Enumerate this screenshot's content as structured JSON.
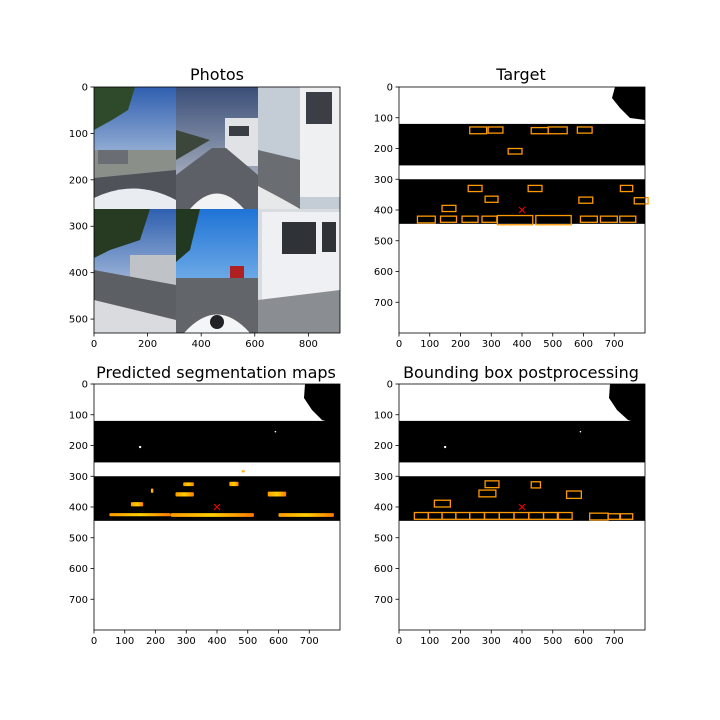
{
  "figure": {
    "panels": [
      {
        "id": "photos",
        "title": "Photos"
      },
      {
        "id": "target",
        "title": "Target"
      },
      {
        "id": "pred",
        "title": "Predicted segmentation maps"
      },
      {
        "id": "bbox",
        "title": "Bounding box postprocessing"
      }
    ]
  },
  "chart_data": [
    {
      "type": "image",
      "title": "Photos",
      "xlim": [
        0,
        918
      ],
      "ylim": [
        0,
        530
      ],
      "xticks": [
        0,
        200,
        400,
        600,
        800
      ],
      "yticks": [
        0,
        100,
        200,
        300,
        400,
        500
      ],
      "grid": false,
      "camera_tiles": 6
    },
    {
      "type": "image",
      "title": "Target",
      "xlim": [
        0,
        800
      ],
      "ylim": [
        0,
        800
      ],
      "xticks": [
        0,
        100,
        200,
        300,
        400,
        500,
        600,
        700
      ],
      "yticks": [
        0,
        100,
        200,
        300,
        400,
        500,
        600,
        700
      ],
      "grid": false,
      "road_bands": [
        [
          120,
          255
        ],
        [
          300,
          445
        ]
      ],
      "ego_marker": [
        400,
        400
      ],
      "boxes": [
        [
          230,
          130,
          55,
          22
        ],
        [
          290,
          130,
          48,
          20
        ],
        [
          430,
          132,
          55,
          20
        ],
        [
          485,
          130,
          62,
          22
        ],
        [
          580,
          130,
          48,
          20
        ],
        [
          355,
          200,
          45,
          18
        ],
        [
          225,
          320,
          45,
          20
        ],
        [
          420,
          320,
          45,
          20
        ],
        [
          720,
          320,
          40,
          20
        ],
        [
          280,
          355,
          42,
          20
        ],
        [
          585,
          358,
          45,
          20
        ],
        [
          765,
          360,
          45,
          20
        ],
        [
          140,
          385,
          45,
          20
        ],
        [
          60,
          420,
          58,
          22
        ],
        [
          135,
          420,
          52,
          20
        ],
        [
          205,
          420,
          52,
          20
        ],
        [
          270,
          420,
          48,
          20
        ],
        [
          320,
          418,
          115,
          30
        ],
        [
          445,
          418,
          115,
          30
        ],
        [
          590,
          420,
          55,
          20
        ],
        [
          655,
          420,
          55,
          20
        ],
        [
          718,
          420,
          52,
          20
        ]
      ]
    },
    {
      "type": "heatmap",
      "title": "Predicted segmentation maps",
      "xlim": [
        0,
        800
      ],
      "ylim": [
        0,
        800
      ],
      "xticks": [
        0,
        100,
        200,
        300,
        400,
        500,
        600,
        700
      ],
      "yticks": [
        0,
        100,
        200,
        300,
        400,
        500,
        600,
        700
      ],
      "grid": false,
      "road_bands": [
        [
          120,
          255
        ],
        [
          300,
          445
        ]
      ],
      "ego_marker": [
        400,
        400
      ],
      "blobs": [
        [
          50,
          420,
          200,
          10
        ],
        [
          250,
          420,
          270,
          12
        ],
        [
          600,
          420,
          180,
          12
        ],
        [
          290,
          320,
          35,
          12
        ],
        [
          265,
          352,
          60,
          14
        ],
        [
          440,
          318,
          30,
          14
        ],
        [
          565,
          350,
          60,
          16
        ],
        [
          120,
          384,
          40,
          14
        ],
        [
          185,
          340,
          8,
          14
        ],
        [
          480,
          280,
          10,
          8
        ]
      ]
    },
    {
      "type": "image",
      "title": "Bounding box postprocessing",
      "xlim": [
        0,
        800
      ],
      "ylim": [
        0,
        800
      ],
      "xticks": [
        0,
        100,
        200,
        300,
        400,
        500,
        600,
        700
      ],
      "yticks": [
        0,
        100,
        200,
        300,
        400,
        500,
        600,
        700
      ],
      "grid": false,
      "road_bands": [
        [
          120,
          255
        ],
        [
          300,
          445
        ]
      ],
      "ego_marker": [
        400,
        400
      ],
      "boxes": [
        [
          280,
          315,
          45,
          22
        ],
        [
          430,
          318,
          30,
          20
        ],
        [
          260,
          345,
          55,
          22
        ],
        [
          545,
          348,
          48,
          24
        ],
        [
          115,
          378,
          52,
          22
        ],
        [
          50,
          418,
          45,
          22
        ],
        [
          95,
          418,
          45,
          22
        ],
        [
          140,
          418,
          45,
          22
        ],
        [
          185,
          418,
          45,
          22
        ],
        [
          230,
          418,
          48,
          22
        ],
        [
          278,
          418,
          48,
          22
        ],
        [
          326,
          418,
          48,
          22
        ],
        [
          374,
          418,
          48,
          22
        ],
        [
          422,
          418,
          48,
          22
        ],
        [
          470,
          418,
          48,
          22
        ],
        [
          515,
          418,
          48,
          22
        ],
        [
          620,
          420,
          60,
          22
        ],
        [
          680,
          422,
          40,
          18
        ],
        [
          718,
          422,
          42,
          18
        ]
      ]
    }
  ]
}
